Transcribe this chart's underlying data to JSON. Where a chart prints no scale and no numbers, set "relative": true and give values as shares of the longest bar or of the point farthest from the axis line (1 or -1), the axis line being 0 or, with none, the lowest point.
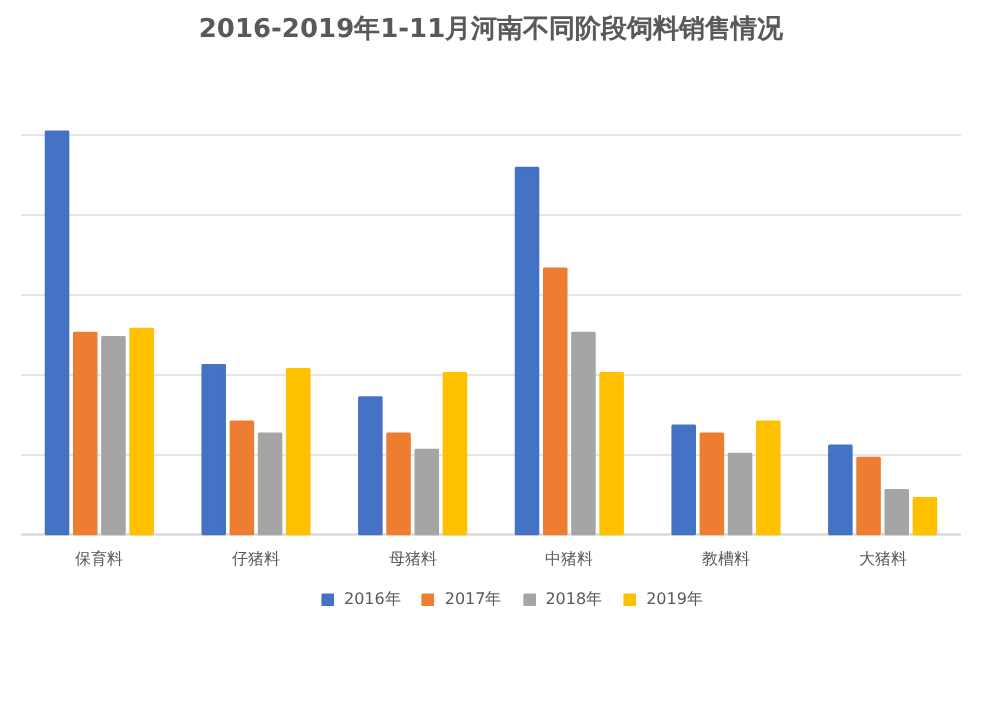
{
  "chart_data": {
    "type": "bar",
    "title": "2016-2019年1-11月河南不同阶段饲料销售情况",
    "categories": [
      "保育料",
      "仔猪料",
      "母猪料",
      "中猪料",
      "教槽料",
      "大猪料"
    ],
    "relative": true,
    "grid": "y",
    "legend": "bottom",
    "series": [
      {
        "name": "2016年",
        "color": "#4472c4",
        "values": [
          1.0,
          0.42,
          0.34,
          0.91,
          0.27,
          0.22
        ]
      },
      {
        "name": "2017年",
        "color": "#ed7d31",
        "values": [
          0.5,
          0.28,
          0.25,
          0.66,
          0.25,
          0.19
        ]
      },
      {
        "name": "2018年",
        "color": "#a5a5a5",
        "values": [
          0.49,
          0.25,
          0.21,
          0.5,
          0.2,
          0.11
        ]
      },
      {
        "name": "2019年",
        "color": "#ffc000",
        "values": [
          0.51,
          0.41,
          0.4,
          0.4,
          0.28,
          0.09
        ]
      }
    ]
  }
}
